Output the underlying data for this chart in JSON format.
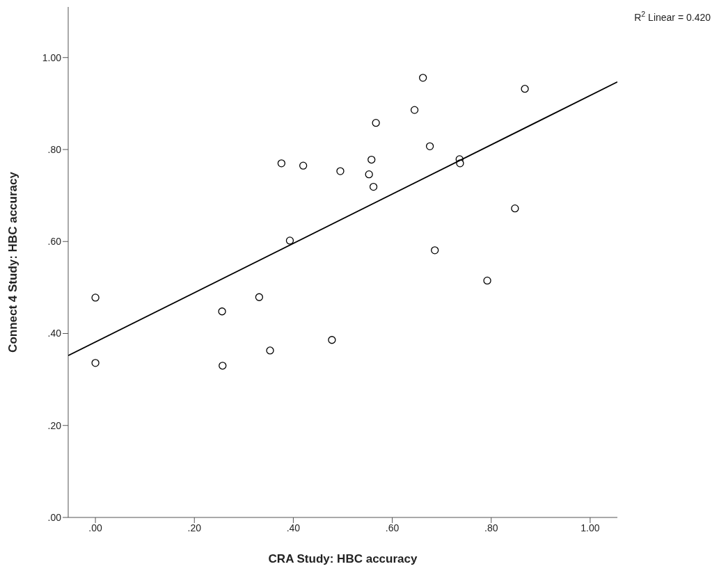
{
  "chart_data": {
    "type": "scatter",
    "xlabel": "CRA Study: HBC accuracy",
    "ylabel": "Connect 4 Study: HBC accuracy",
    "annotations": [
      "R$^{2}$ Linear = 0.420"
    ],
    "xlim": [
      -0.055,
      1.055
    ],
    "ylim": [
      0,
      1.11
    ],
    "xticks": [
      {
        "value": 0,
        "label": ".00"
      },
      {
        "value": 0.2,
        "label": ".20"
      },
      {
        "value": 0.4,
        "label": ".40"
      },
      {
        "value": 0.6,
        "label": ".60"
      },
      {
        "value": 0.8,
        "label": ".80"
      },
      {
        "value": 1,
        "label": "1.00"
      }
    ],
    "yticks": [
      {
        "value": 0,
        "label": ".00"
      },
      {
        "value": 0.2,
        "label": ".20"
      },
      {
        "value": 0.4,
        "label": ".40"
      },
      {
        "value": 0.6,
        "label": ".60"
      },
      {
        "value": 0.8,
        "label": ".80"
      },
      {
        "value": 1,
        "label": "1.00"
      }
    ],
    "grid": false,
    "legend": false,
    "series": [
      {
        "marker": "circle",
        "color": "#000000",
        "x": [
          0,
          0,
          0.256,
          0.257,
          0.331,
          0.353,
          0.478,
          0.376,
          0.42,
          0.495,
          0.393,
          0.662,
          0.868,
          0.645,
          0.567,
          0.676,
          0.558,
          0.553,
          0.562,
          0.736,
          0.737,
          0.848,
          0.686,
          0.792
        ],
        "values": [
          0.478,
          0.336,
          0.448,
          0.33,
          0.479,
          0.363,
          0.386,
          0.77,
          0.765,
          0.753,
          0.602,
          0.956,
          0.932,
          0.886,
          0.858,
          0.807,
          0.778,
          0.746,
          0.719,
          0.779,
          0.77,
          0.672,
          0.581,
          0.515
        ]
      },
      {
        "type": "line",
        "marker": "none",
        "color": "#000000",
        "x": [
          -0.055,
          1.055
        ],
        "values": [
          0.352,
          0.947
        ]
      }
    ]
  }
}
